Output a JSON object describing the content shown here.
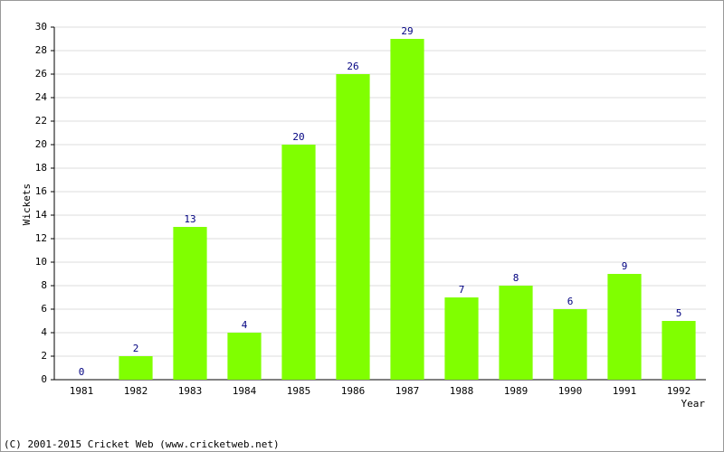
{
  "chart_data": {
    "type": "bar",
    "y_label": "Wickets",
    "x_label": "Year",
    "credit": "(C) 2001-2015 Cricket Web (www.cricketweb.net)",
    "categories": [
      "1981",
      "1982",
      "1983",
      "1984",
      "1985",
      "1986",
      "1987",
      "1988",
      "1989",
      "1990",
      "1991",
      "1992"
    ],
    "values": [
      0,
      2,
      13,
      4,
      20,
      26,
      29,
      7,
      8,
      6,
      9,
      5
    ],
    "color": "#80ff00",
    "label_color": "#000080",
    "ylim": [
      0,
      30
    ],
    "yticks": [
      0,
      2,
      4,
      6,
      8,
      10,
      12,
      14,
      16,
      18,
      20,
      22,
      24,
      26,
      28,
      30
    ],
    "grid": true
  }
}
